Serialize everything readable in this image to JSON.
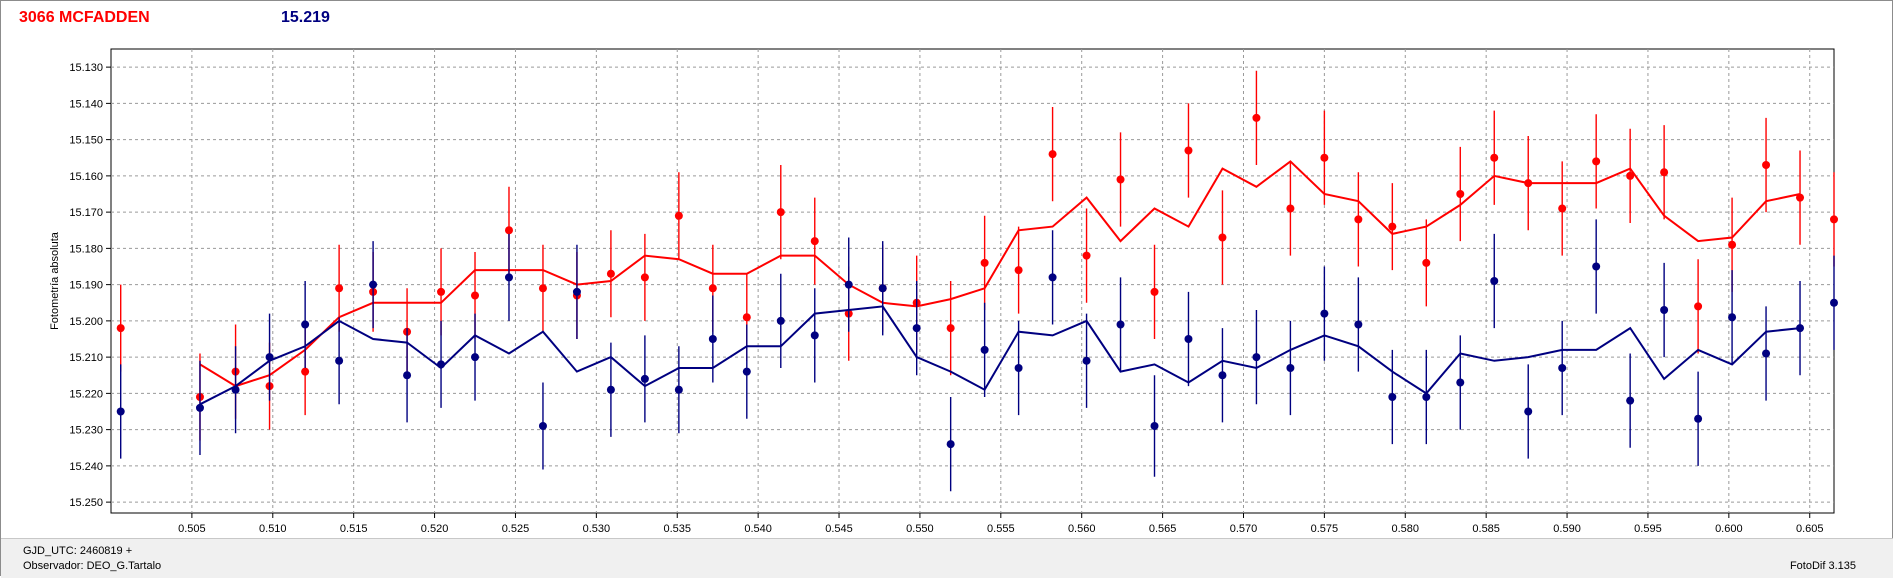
{
  "header": {
    "title": "3066 MCFADDEN",
    "value": "15.219",
    "title_color": "#ff0000",
    "value_color": "#000080"
  },
  "footer": {
    "gjd": "GJD_UTC: 2460819 +",
    "observer": "Observador: DEO_G.Tartalo",
    "version": "FotoDif 3.135"
  },
  "chart_data": {
    "type": "scatter",
    "title": "3066 MCFADDEN",
    "ylabel": "Fotometría absoluta",
    "xlabel": "",
    "xlim": [
      0.5,
      0.5065
    ],
    "xlim_full": [
      0.5,
      0.6065
    ],
    "ylim": [
      15.125,
      15.253
    ],
    "y_inverted": true,
    "grid": true,
    "x_ticks": [
      "0.505",
      "0.510",
      "0.515",
      "0.520",
      "0.525",
      "0.530",
      "0.535",
      "0.540",
      "0.545",
      "0.550",
      "0.555",
      "0.560",
      "0.565",
      "0.570",
      "0.575",
      "0.580",
      "0.585",
      "0.590",
      "0.595",
      "0.600",
      "0.605"
    ],
    "y_ticks": [
      "15.130",
      "15.140",
      "15.150",
      "15.160",
      "15.170",
      "15.180",
      "15.190",
      "15.200",
      "15.210",
      "15.220",
      "15.230",
      "15.240",
      "15.250"
    ],
    "series": [
      {
        "color": "#ff0000",
        "x": [
          0.5006,
          0.5055,
          0.5077,
          0.5098,
          0.512,
          0.5141,
          0.5162,
          0.5183,
          0.5204,
          0.5225,
          0.5246,
          0.5267,
          0.5288,
          0.5309,
          0.533,
          0.5351,
          0.5372,
          0.5393,
          0.5414,
          0.5435,
          0.5456,
          0.5477,
          0.5498,
          0.5519,
          0.554,
          0.5561,
          0.5582,
          0.5603,
          0.5624,
          0.5645,
          0.5666,
          0.5687,
          0.5708,
          0.5729,
          0.575,
          0.5771,
          0.5792,
          0.5813,
          0.5834,
          0.5855,
          0.5876,
          0.5897,
          0.5918,
          0.5939,
          0.596,
          0.5981,
          0.6002,
          0.6023,
          0.6044,
          0.6065
        ],
        "y": [
          15.202,
          15.221,
          15.214,
          15.218,
          15.214,
          15.191,
          15.192,
          15.203,
          15.192,
          15.193,
          15.175,
          15.191,
          15.193,
          15.187,
          15.188,
          15.171,
          15.191,
          15.199,
          15.17,
          15.178,
          15.198,
          15.191,
          15.195,
          15.202,
          15.184,
          15.186,
          15.154,
          15.182,
          15.161,
          15.192,
          15.153,
          15.177,
          15.144,
          15.169,
          15.155,
          15.172,
          15.174,
          15.184,
          15.165,
          15.155,
          15.162,
          15.169,
          15.156,
          15.16,
          15.159,
          15.196,
          15.179,
          15.157,
          15.166,
          15.172
        ],
        "err": [
          0.012,
          0.012,
          0.013,
          0.012,
          0.012,
          0.012,
          0.011,
          0.012,
          0.012,
          0.012,
          0.012,
          0.012,
          0.012,
          0.012,
          0.012,
          0.012,
          0.012,
          0.012,
          0.013,
          0.012,
          0.013,
          0.012,
          0.013,
          0.013,
          0.013,
          0.012,
          0.013,
          0.013,
          0.013,
          0.013,
          0.013,
          0.013,
          0.013,
          0.013,
          0.013,
          0.013,
          0.012,
          0.012,
          0.013,
          0.013,
          0.013,
          0.013,
          0.013,
          0.013,
          0.013,
          0.013,
          0.013,
          0.013,
          0.013,
          0.013
        ],
        "trend_x": [
          0.5055,
          0.5077,
          0.5098,
          0.512,
          0.5141,
          0.5162,
          0.5183,
          0.5204,
          0.5225,
          0.5246,
          0.5267,
          0.5288,
          0.5309,
          0.533,
          0.5351,
          0.5372,
          0.5393,
          0.5414,
          0.5435,
          0.5456,
          0.5477,
          0.5498,
          0.5519,
          0.554,
          0.5561,
          0.5582,
          0.5603,
          0.5624,
          0.5645,
          0.5666,
          0.5687,
          0.5708,
          0.5729,
          0.575,
          0.5771,
          0.5792,
          0.5813,
          0.5834,
          0.5855,
          0.5876,
          0.5897,
          0.5918,
          0.5939,
          0.596,
          0.5981,
          0.6002,
          0.6023,
          0.6044
        ],
        "trend_y": [
          15.212,
          15.218,
          15.215,
          15.208,
          15.199,
          15.195,
          15.195,
          15.195,
          15.186,
          15.186,
          15.186,
          15.19,
          15.189,
          15.182,
          15.183,
          15.187,
          15.187,
          15.182,
          15.182,
          15.19,
          15.195,
          15.196,
          15.194,
          15.191,
          15.175,
          15.174,
          15.166,
          15.178,
          15.169,
          15.174,
          15.158,
          15.163,
          15.156,
          15.165,
          15.167,
          15.176,
          15.174,
          15.168,
          15.16,
          15.162,
          15.162,
          15.162,
          15.158,
          15.171,
          15.178,
          15.177,
          15.167,
          15.165
        ]
      },
      {
        "color": "#000080",
        "x": [
          0.5006,
          0.5055,
          0.5077,
          0.5098,
          0.512,
          0.5141,
          0.5162,
          0.5183,
          0.5204,
          0.5225,
          0.5246,
          0.5267,
          0.5288,
          0.5309,
          0.533,
          0.5351,
          0.5372,
          0.5393,
          0.5414,
          0.5435,
          0.5456,
          0.5477,
          0.5498,
          0.5519,
          0.554,
          0.5561,
          0.5582,
          0.5603,
          0.5624,
          0.5645,
          0.5666,
          0.5687,
          0.5708,
          0.5729,
          0.575,
          0.5771,
          0.5792,
          0.5813,
          0.5834,
          0.5855,
          0.5876,
          0.5897,
          0.5918,
          0.5939,
          0.596,
          0.5981,
          0.6002,
          0.6023,
          0.6044,
          0.6065
        ],
        "y": [
          15.225,
          15.224,
          15.219,
          15.21,
          15.201,
          15.211,
          15.19,
          15.215,
          15.212,
          15.21,
          15.188,
          15.229,
          15.192,
          15.219,
          15.216,
          15.219,
          15.205,
          15.214,
          15.2,
          15.204,
          15.19,
          15.191,
          15.202,
          15.234,
          15.208,
          15.213,
          15.188,
          15.211,
          15.201,
          15.229,
          15.205,
          15.215,
          15.21,
          15.213,
          15.198,
          15.201,
          15.221,
          15.221,
          15.217,
          15.189,
          15.225,
          15.213,
          15.185,
          15.222,
          15.197,
          15.227,
          15.199,
          15.209,
          15.202,
          15.195
        ],
        "err": [
          0.013,
          0.013,
          0.012,
          0.012,
          0.012,
          0.012,
          0.012,
          0.013,
          0.012,
          0.012,
          0.012,
          0.012,
          0.013,
          0.013,
          0.012,
          0.012,
          0.012,
          0.013,
          0.013,
          0.013,
          0.013,
          0.013,
          0.013,
          0.013,
          0.013,
          0.013,
          0.013,
          0.013,
          0.013,
          0.014,
          0.013,
          0.013,
          0.013,
          0.013,
          0.013,
          0.013,
          0.013,
          0.013,
          0.013,
          0.013,
          0.013,
          0.013,
          0.013,
          0.013,
          0.013,
          0.013,
          0.013,
          0.013,
          0.013,
          0.013
        ],
        "trend_x": [
          0.5055,
          0.5077,
          0.5098,
          0.512,
          0.5141,
          0.5162,
          0.5183,
          0.5204,
          0.5225,
          0.5246,
          0.5267,
          0.5288,
          0.5309,
          0.533,
          0.5351,
          0.5372,
          0.5393,
          0.5414,
          0.5435,
          0.5456,
          0.5477,
          0.5498,
          0.5519,
          0.554,
          0.5561,
          0.5582,
          0.5603,
          0.5624,
          0.5645,
          0.5666,
          0.5687,
          0.5708,
          0.5729,
          0.575,
          0.5771,
          0.5792,
          0.5813,
          0.5834,
          0.5855,
          0.5876,
          0.5897,
          0.5918,
          0.5939,
          0.596,
          0.5981,
          0.6002,
          0.6023,
          0.6044
        ],
        "trend_y": [
          15.223,
          15.218,
          15.211,
          15.207,
          15.2,
          15.205,
          15.206,
          15.213,
          15.204,
          15.209,
          15.203,
          15.214,
          15.21,
          15.218,
          15.213,
          15.213,
          15.207,
          15.207,
          15.198,
          15.197,
          15.196,
          15.21,
          15.214,
          15.219,
          15.203,
          15.204,
          15.2,
          15.214,
          15.212,
          15.217,
          15.211,
          15.213,
          15.208,
          15.204,
          15.207,
          15.214,
          15.22,
          15.209,
          15.211,
          15.21,
          15.208,
          15.208,
          15.202,
          15.216,
          15.208,
          15.212,
          15.203,
          15.202
        ]
      }
    ]
  }
}
